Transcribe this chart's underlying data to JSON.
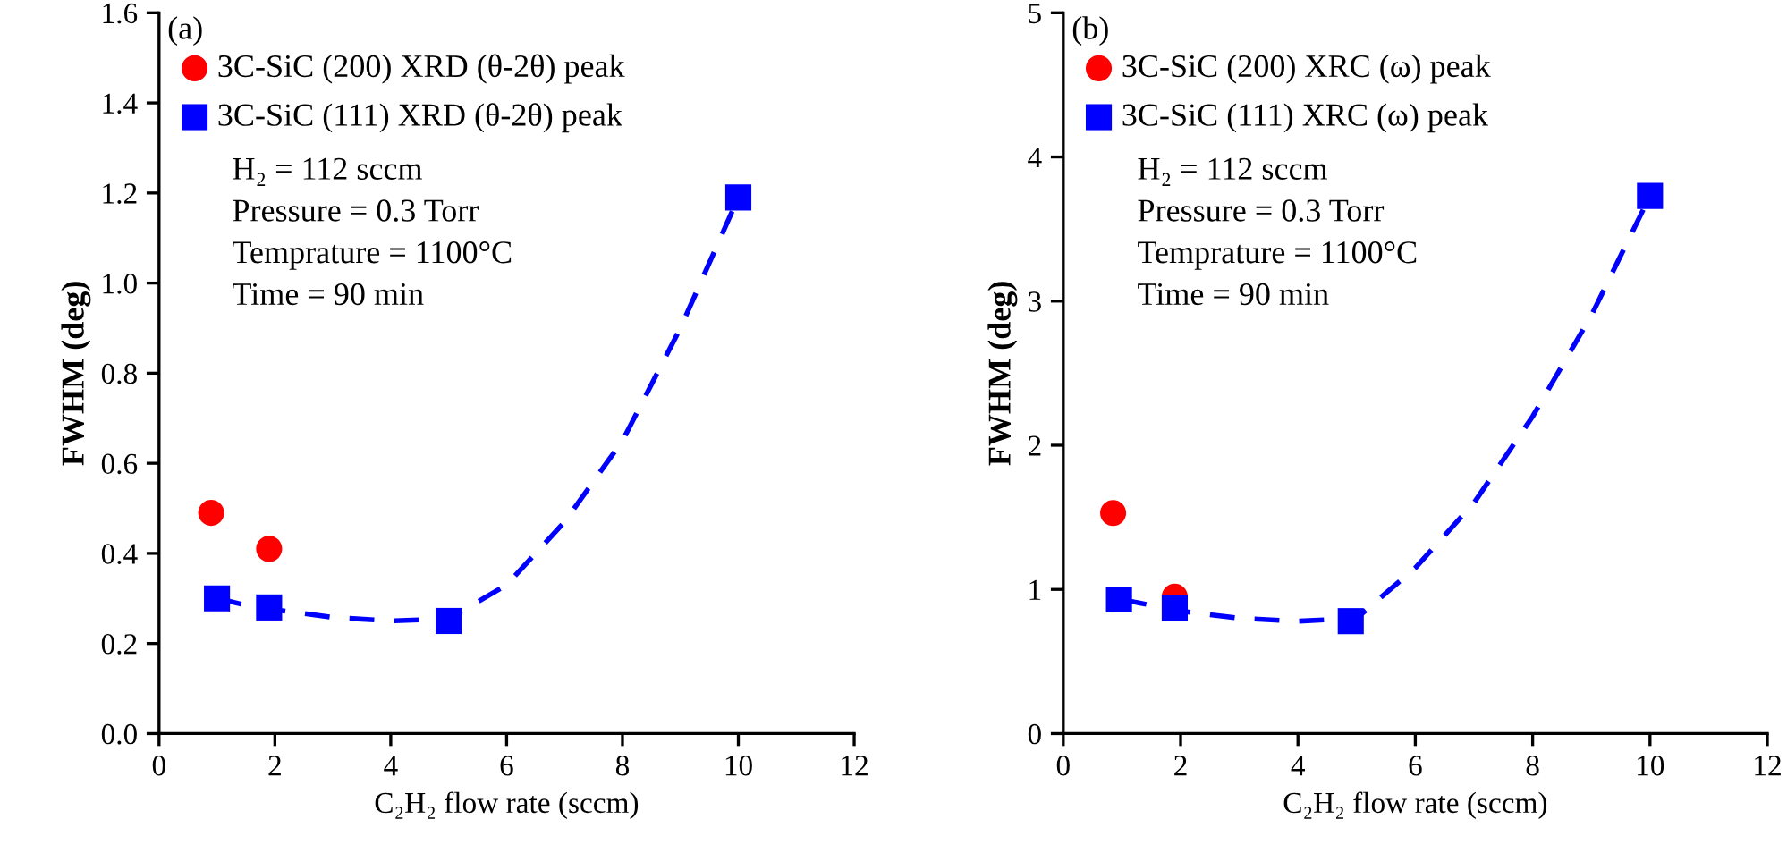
{
  "chart_data": [
    {
      "type": "scatter",
      "xlabel": "C₂H₂ flow rate (sccm)",
      "ylabel": "FWHM (deg)",
      "xlim": [
        0,
        12
      ],
      "xticks": [
        0,
        2,
        4,
        6,
        8,
        10,
        12
      ],
      "ylim": [
        0,
        1.6
      ],
      "yticks": [
        {
          "value": 0,
          "label": "0.0"
        },
        {
          "value": 0.2,
          "label": "0.2"
        },
        {
          "value": 0.4,
          "label": "0.4"
        },
        {
          "value": 0.6,
          "label": "0.6"
        },
        {
          "value": 0.8,
          "label": "0.8"
        },
        {
          "value": 1.0,
          "label": "1.0"
        },
        {
          "value": 1.2,
          "label": "1.2"
        },
        {
          "value": 1.4,
          "label": "1.4"
        },
        {
          "value": 1.6,
          "label": "1.6"
        }
      ],
      "grid": false,
      "legend": "top left",
      "annotations": [
        "(a)",
        "H₂ = 112 sccm",
        "Pressure = 0.3 Torr",
        "Temprature = 1100°C",
        "Time = 90 min"
      ],
      "series": [
        {
          "name": "3C-SiC (200) XRD (θ-2θ) peak",
          "marker": "circle",
          "color": "#ff0000",
          "x": [
            0.9,
            1.9
          ],
          "values": [
            0.49,
            0.41
          ]
        },
        {
          "name": "3C-SiC (111) XRD (θ-2θ) peak",
          "marker": "square",
          "color": "#0000ff",
          "x": [
            1.0,
            1.9,
            5.0,
            10.0
          ],
          "values": [
            0.3,
            0.28,
            0.25,
            1.19
          ]
        },
        {
          "type": "line",
          "line_style": "dashed",
          "marker": "none",
          "color": "#0000ff",
          "x": [
            1,
            1.5,
            2,
            3,
            4,
            5,
            6,
            7,
            8,
            9,
            10
          ],
          "values": [
            0.3,
            0.285,
            0.275,
            0.258,
            0.25,
            0.255,
            0.33,
            0.47,
            0.65,
            0.9,
            1.19
          ]
        }
      ]
    },
    {
      "type": "scatter",
      "xlabel": "C₂H₂ flow rate (sccm)",
      "ylabel": "FWHM (deg)",
      "xlim": [
        0,
        12
      ],
      "xticks": [
        0,
        2,
        4,
        6,
        8,
        10,
        12
      ],
      "ylim": [
        0,
        5
      ],
      "yticks": [
        0,
        1,
        2,
        3,
        4,
        5
      ],
      "grid": false,
      "legend": "top left",
      "annotations": [
        "(b)",
        "H₂ = 112 sccm",
        "Pressure = 0.3 Torr",
        "Temprature = 1100°C",
        "Time = 90 min"
      ],
      "series": [
        {
          "name": "3C-SiC (200) XRC (ω) peak",
          "marker": "circle",
          "color": "#ff0000",
          "x": [
            0.85,
            1.9
          ],
          "values": [
            1.53,
            0.95
          ]
        },
        {
          "name": "3C-SiC (111) XRC (ω) peak",
          "marker": "square",
          "color": "#0000ff",
          "x": [
            0.95,
            1.9,
            4.9,
            10.0
          ],
          "values": [
            0.93,
            0.87,
            0.78,
            3.73
          ]
        },
        {
          "type": "line",
          "line_style": "dashed",
          "marker": "none",
          "color": "#0000ff",
          "x": [
            1,
            2,
            3,
            4,
            5,
            6,
            7,
            8,
            9,
            10
          ],
          "values": [
            0.93,
            0.85,
            0.8,
            0.78,
            0.8,
            1.15,
            1.6,
            2.2,
            2.9,
            3.73
          ]
        }
      ]
    }
  ]
}
